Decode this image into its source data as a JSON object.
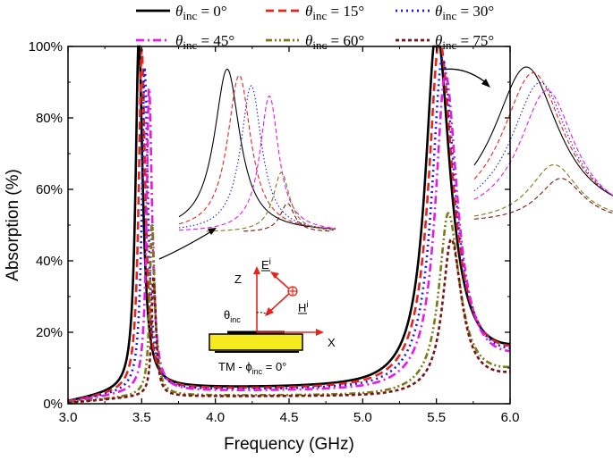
{
  "chart_data": {
    "type": "line",
    "xlabel": "Frequency (GHz)",
    "ylabel": "Absorption (%)",
    "xlim": [
      3.0,
      6.0
    ],
    "ylim": [
      0,
      100
    ],
    "xticks": [
      "3.0",
      "3.5",
      "4.0",
      "4.5",
      "5.0",
      "5.5",
      "6.0"
    ],
    "yticks": [
      "0%",
      "20%",
      "40%",
      "60%",
      "80%",
      "100%"
    ],
    "series": [
      {
        "name": "0°",
        "color": "#000000",
        "dash": "solid",
        "peaks": [
          {
            "f": 3.48,
            "a": 99,
            "w": 0.026,
            "lw": 0.011
          },
          {
            "f": 5.5,
            "a": 100,
            "w": 0.09,
            "lw": 0.04
          }
        ],
        "base": [
          0.4,
          4.2,
          12.0
        ]
      },
      {
        "name": "15°",
        "color": "#e8231c",
        "dash": "dash",
        "peaks": [
          {
            "f": 3.5,
            "a": 96,
            "w": 0.024,
            "lw": 0.01
          },
          {
            "f": 5.52,
            "a": 97,
            "w": 0.088,
            "lw": 0.038
          }
        ],
        "base": [
          0.4,
          3.9,
          11.5
        ]
      },
      {
        "name": "30°",
        "color": "#1a1ae6",
        "dash": "dot",
        "peaks": [
          {
            "f": 3.52,
            "a": 91,
            "w": 0.022,
            "lw": 0.009
          },
          {
            "f": 5.54,
            "a": 92,
            "w": 0.085,
            "lw": 0.036
          }
        ],
        "base": [
          0.4,
          3.7,
          11.0
        ]
      },
      {
        "name": "45°",
        "color": "#e619e6",
        "dash": "dashdot",
        "peaks": [
          {
            "f": 3.55,
            "a": 86,
            "w": 0.02,
            "lw": 0.008
          },
          {
            "f": 5.56,
            "a": 88,
            "w": 0.08,
            "lw": 0.034
          }
        ],
        "base": [
          0.3,
          3.4,
          10.5
        ]
      },
      {
        "name": "60°",
        "color": "#7a7a18",
        "dash": "dashdotdot",
        "peaks": [
          {
            "f": 3.57,
            "a": 49,
            "w": 0.018,
            "lw": 0.007
          },
          {
            "f": 5.58,
            "a": 50,
            "w": 0.075,
            "lw": 0.03
          }
        ],
        "base": [
          0.3,
          2.2,
          8.0
        ]
      },
      {
        "name": "75°",
        "color": "#7a1414",
        "dash": "shortdash",
        "peaks": [
          {
            "f": 3.58,
            "a": 34,
            "w": 0.016,
            "lw": 0.006
          },
          {
            "f": 5.6,
            "a": 43,
            "w": 0.07,
            "lw": 0.028
          }
        ],
        "base": [
          0.2,
          2.0,
          7.0
        ]
      }
    ]
  },
  "legend": {
    "theta": "θ",
    "sub": "inc",
    "items": [
      " = 0°",
      " = 15°",
      " = 30°",
      " = 45°",
      " = 60°",
      " = 75°"
    ]
  },
  "inset": {
    "z_label": "Z",
    "x_label": "X",
    "e_label": "E",
    "e_sup": "i",
    "h_label": "H",
    "h_sup": "i",
    "theta_label": "θ",
    "theta_sub": "inc",
    "tm_prefix": "TM - ",
    "phi": "ϕ",
    "phi_sub": "inc",
    "tm_suffix": " = 0°",
    "slab_color": "#f5ea1e"
  }
}
